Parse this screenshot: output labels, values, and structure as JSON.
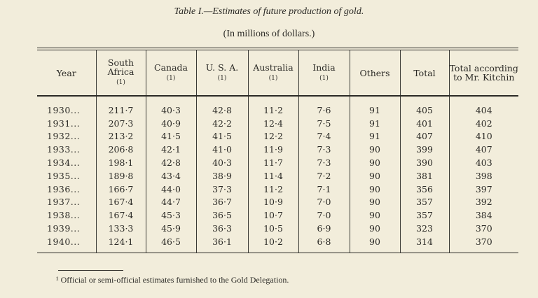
{
  "title": "Table I.—Estimates of future production of gold.",
  "subtitle": "(In millions of dollars.)",
  "headers": [
    {
      "label": "Year",
      "note": ""
    },
    {
      "label": "South Africa",
      "note": "(1)"
    },
    {
      "label": "Canada",
      "note": "(1)"
    },
    {
      "label": "U. S. A.",
      "note": "(1)"
    },
    {
      "label": "Australia",
      "note": "(1)"
    },
    {
      "label": "India",
      "note": "(1)"
    },
    {
      "label": "Others",
      "note": ""
    },
    {
      "label": "Total",
      "note": ""
    },
    {
      "label": "Total according to Mr. Kitchin",
      "note": ""
    }
  ],
  "rows": [
    [
      "1930...",
      "211·7",
      "40·3",
      "42·8",
      "11·2",
      "7·6",
      "91",
      "405",
      "404"
    ],
    [
      "1931...",
      "207·3",
      "40·9",
      "42·2",
      "12·4",
      "7·5",
      "91",
      "401",
      "402"
    ],
    [
      "1932...",
      "213·2",
      "41·5",
      "41·5",
      "12·2",
      "7·4",
      "91",
      "407",
      "410"
    ],
    [
      "1933...",
      "206·8",
      "42·1",
      "41·0",
      "11·9",
      "7·3",
      "90",
      "399",
      "407"
    ],
    [
      "1934...",
      "198·1",
      "42·8",
      "40·3",
      "11·7",
      "7·3",
      "90",
      "390",
      "403"
    ],
    [
      "1935...",
      "189·8",
      "43·4",
      "38·9",
      "11·4",
      "7·2",
      "90",
      "381",
      "398"
    ],
    [
      "1936...",
      "166·7",
      "44·0",
      "37·3",
      "11·2",
      "7·1",
      "90",
      "356",
      "397"
    ],
    [
      "1937...",
      "167·4",
      "44·7",
      "36·7",
      "10·9",
      "7·0",
      "90",
      "357",
      "392"
    ],
    [
      "1938...",
      "167·4",
      "45·3",
      "36·5",
      "10·7",
      "7·0",
      "90",
      "357",
      "384"
    ],
    [
      "1939...",
      "133·3",
      "45·9",
      "36·3",
      "10·5",
      "6·9",
      "90",
      "323",
      "370"
    ],
    [
      "1940...",
      "124·1",
      "46·5",
      "36·1",
      "10·2",
      "6·8",
      "90",
      "314",
      "370"
    ]
  ],
  "footnote": "¹ Official or semi-official estimates furnished to the Gold Delegation."
}
